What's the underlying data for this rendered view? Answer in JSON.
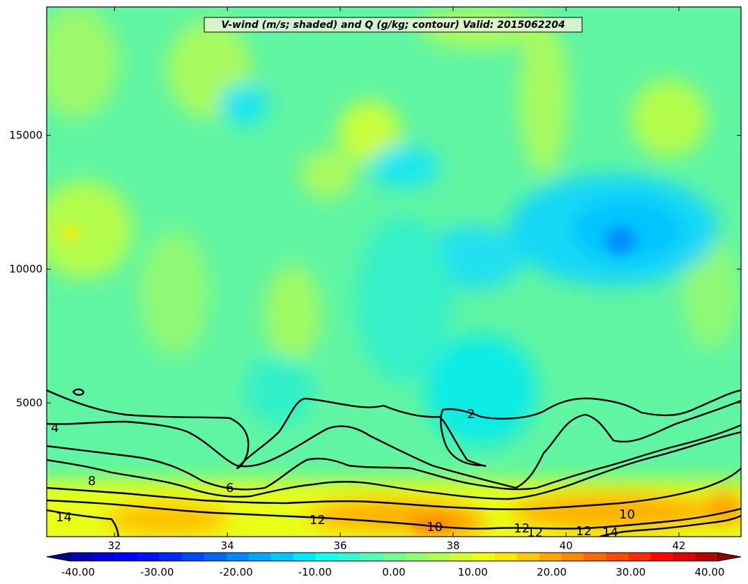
{
  "chart_data": {
    "type": "contour",
    "title": "V-wind (m/s; shaded) and Q (g/kg; contour) Valid: 2015062204",
    "shaded_variable": "V-wind (m/s)",
    "contour_variable": "Q (g/kg)",
    "xlim": [
      30.8,
      43.1
    ],
    "ylim": [
      0,
      19800
    ],
    "x_ticks": [
      32,
      34,
      36,
      38,
      40,
      42
    ],
    "y_ticks": [
      5000,
      10000,
      15000
    ],
    "colorbar": {
      "min": -40,
      "max": 40,
      "extend": "both",
      "labels": [
        "-40.00",
        "-30.00",
        "-20.00",
        "-10.00",
        "0.00",
        "10.00",
        "20.00",
        "30.00",
        "40.00"
      ],
      "colors": [
        "#00008f",
        "#0000b7",
        "#0000df",
        "#0000ff",
        "#0010ff",
        "#0028ff",
        "#0048ff",
        "#0068ff",
        "#0088ff",
        "#00a8ff",
        "#00c8ff",
        "#00e8ff",
        "#10ffef",
        "#30ffcf",
        "#50ffaf",
        "#70ff8f",
        "#8fff70",
        "#afff50",
        "#cfff30",
        "#efff10",
        "#ffe800",
        "#ffc800",
        "#ffa800",
        "#ff8800",
        "#ff6800",
        "#ff4800",
        "#ff2800",
        "#ff0800",
        "#df0000",
        "#b70000",
        "#8f0000"
      ]
    },
    "contour_levels": [
      2,
      4,
      6,
      8,
      10,
      12,
      14
    ],
    "contour_label_values": [
      "2",
      "4",
      "6",
      "8",
      "10",
      "12",
      "14",
      "12",
      "10",
      "12",
      "12",
      "14",
      "10"
    ]
  }
}
